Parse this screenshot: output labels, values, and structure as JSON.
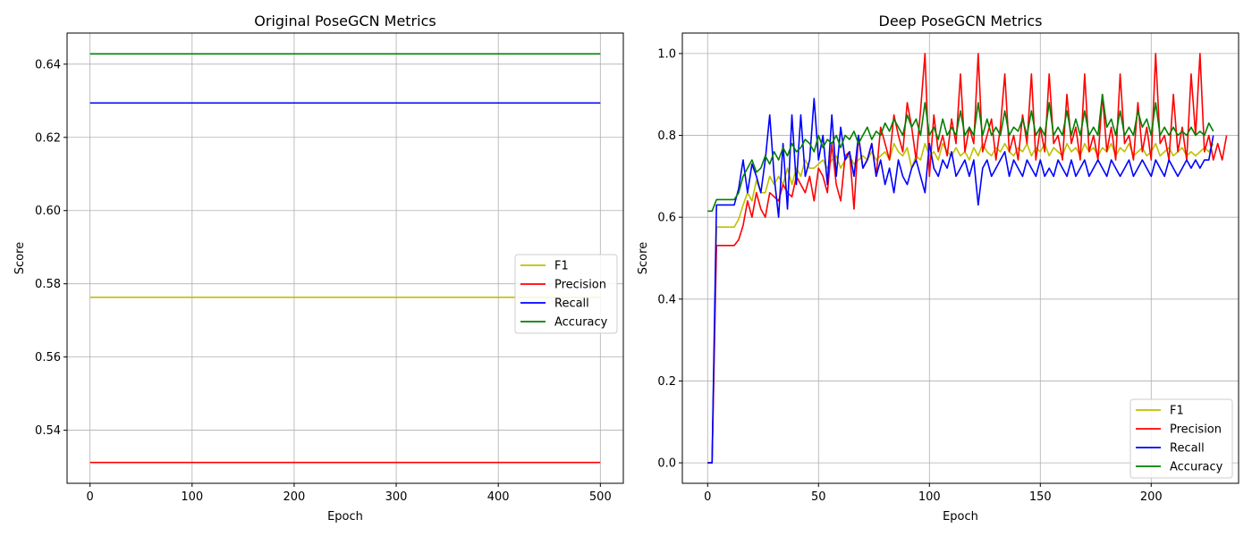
{
  "chart_data": [
    {
      "type": "line",
      "title": "Original PoseGCN Metrics",
      "xlabel": "Epoch",
      "ylabel": "Score",
      "xlim": [
        -22.5,
        522.5
      ],
      "ylim": [
        0.5255,
        0.6485
      ],
      "xticks": [
        0,
        100,
        200,
        300,
        400,
        500
      ],
      "yticks": [
        0.54,
        0.56,
        0.58,
        0.6,
        0.62,
        0.64
      ],
      "ytick_labels": [
        "0.54",
        "0.56",
        "0.58",
        "0.60",
        "0.62",
        "0.64"
      ],
      "grid": true,
      "legend_position": "center-right",
      "series": [
        {
          "name": "F1",
          "color": "#bfbf00",
          "x": [
            0,
            500
          ],
          "values": [
            0.5763,
            0.5763
          ]
        },
        {
          "name": "Precision",
          "color": "#ff0000",
          "x": [
            0,
            500
          ],
          "values": [
            0.5312,
            0.5312
          ]
        },
        {
          "name": "Recall",
          "color": "#0000ff",
          "x": [
            0,
            500
          ],
          "values": [
            0.6294,
            0.6294
          ]
        },
        {
          "name": "Accuracy",
          "color": "#008000",
          "x": [
            0,
            500
          ],
          "values": [
            0.6428,
            0.6428
          ]
        }
      ]
    },
    {
      "type": "line",
      "title": "Deep PoseGCN Metrics",
      "xlabel": "Epoch",
      "ylabel": "Score",
      "xlim": [
        -11.4,
        239.4
      ],
      "ylim": [
        -0.05,
        1.05
      ],
      "xticks": [
        0,
        50,
        100,
        150,
        200
      ],
      "yticks": [
        0.0,
        0.2,
        0.4,
        0.6,
        0.8,
        1.0
      ],
      "ytick_labels": [
        "0.0",
        "0.2",
        "0.4",
        "0.6",
        "0.8",
        "1.0"
      ],
      "grid": true,
      "legend_position": "lower-right",
      "series": [
        {
          "name": "F1",
          "color": "#bfbf00",
          "x_start": 0,
          "x_step": 2,
          "values": [
            0.0,
            0.0,
            0.576,
            0.576,
            0.576,
            0.576,
            0.576,
            0.595,
            0.63,
            0.66,
            0.64,
            0.69,
            0.66,
            0.66,
            0.7,
            0.68,
            0.7,
            0.68,
            0.72,
            0.68,
            0.72,
            0.7,
            0.74,
            0.72,
            0.72,
            0.73,
            0.74,
            0.72,
            0.74,
            0.75,
            0.72,
            0.74,
            0.75,
            0.73,
            0.74,
            0.75,
            0.74,
            0.76,
            0.74,
            0.75,
            0.76,
            0.74,
            0.78,
            0.76,
            0.75,
            0.77,
            0.72,
            0.75,
            0.74,
            0.78,
            0.75,
            0.76,
            0.74,
            0.78,
            0.76,
            0.75,
            0.77,
            0.75,
            0.76,
            0.74,
            0.77,
            0.75,
            0.78,
            0.76,
            0.75,
            0.77,
            0.76,
            0.78,
            0.76,
            0.75,
            0.77,
            0.76,
            0.78,
            0.75,
            0.77,
            0.76,
            0.78,
            0.75,
            0.77,
            0.76,
            0.75,
            0.78,
            0.76,
            0.77,
            0.75,
            0.78,
            0.76,
            0.77,
            0.75,
            0.77,
            0.76,
            0.78,
            0.75,
            0.77,
            0.76,
            0.78,
            0.75,
            0.76,
            0.77,
            0.75,
            0.76,
            0.78,
            0.75,
            0.76,
            0.77,
            0.75,
            0.76,
            0.77,
            0.75,
            0.76,
            0.75,
            0.76,
            0.77,
            0.76,
            0.78
          ]
        },
        {
          "name": "Precision",
          "color": "#ff0000",
          "x_start": 0,
          "x_step": 2,
          "values": [
            0.0,
            0.0,
            0.531,
            0.531,
            0.531,
            0.531,
            0.531,
            0.545,
            0.58,
            0.64,
            0.6,
            0.66,
            0.62,
            0.6,
            0.66,
            0.65,
            0.64,
            0.68,
            0.66,
            0.65,
            0.7,
            0.68,
            0.66,
            0.7,
            0.64,
            0.72,
            0.7,
            0.66,
            0.78,
            0.68,
            0.64,
            0.75,
            0.76,
            0.62,
            0.8,
            0.72,
            0.74,
            0.78,
            0.7,
            0.82,
            0.78,
            0.74,
            0.85,
            0.8,
            0.76,
            0.88,
            0.82,
            0.74,
            0.86,
            1.0,
            0.7,
            0.85,
            0.76,
            0.8,
            0.75,
            0.84,
            0.78,
            0.95,
            0.76,
            0.82,
            0.78,
            1.0,
            0.76,
            0.8,
            0.84,
            0.74,
            0.82,
            0.95,
            0.76,
            0.8,
            0.74,
            0.85,
            0.78,
            0.95,
            0.74,
            0.82,
            0.76,
            0.95,
            0.78,
            0.8,
            0.74,
            0.9,
            0.78,
            0.82,
            0.74,
            0.95,
            0.76,
            0.8,
            0.74,
            0.9,
            0.76,
            0.82,
            0.74,
            0.95,
            0.78,
            0.8,
            0.74,
            0.88,
            0.76,
            0.82,
            0.74,
            1.0,
            0.78,
            0.8,
            0.74,
            0.9,
            0.76,
            0.82,
            0.74,
            0.95,
            0.8,
            1.0,
            0.76,
            0.8,
            0.74,
            0.78,
            0.74,
            0.8
          ]
        },
        {
          "name": "Recall",
          "color": "#0000ff",
          "x_start": 0,
          "x_step": 2,
          "values": [
            0.0,
            0.0,
            0.63,
            0.63,
            0.63,
            0.63,
            0.63,
            0.67,
            0.74,
            0.66,
            0.73,
            0.7,
            0.66,
            0.74,
            0.85,
            0.7,
            0.6,
            0.78,
            0.62,
            0.85,
            0.68,
            0.85,
            0.7,
            0.74,
            0.89,
            0.74,
            0.8,
            0.68,
            0.85,
            0.7,
            0.82,
            0.74,
            0.76,
            0.7,
            0.8,
            0.72,
            0.74,
            0.78,
            0.7,
            0.74,
            0.68,
            0.72,
            0.66,
            0.74,
            0.7,
            0.68,
            0.72,
            0.74,
            0.7,
            0.66,
            0.78,
            0.72,
            0.7,
            0.74,
            0.72,
            0.76,
            0.7,
            0.72,
            0.74,
            0.7,
            0.74,
            0.63,
            0.72,
            0.74,
            0.7,
            0.72,
            0.74,
            0.76,
            0.7,
            0.74,
            0.72,
            0.7,
            0.74,
            0.72,
            0.7,
            0.74,
            0.7,
            0.72,
            0.7,
            0.74,
            0.72,
            0.7,
            0.74,
            0.7,
            0.72,
            0.74,
            0.7,
            0.72,
            0.74,
            0.72,
            0.7,
            0.74,
            0.72,
            0.7,
            0.72,
            0.74,
            0.7,
            0.72,
            0.74,
            0.72,
            0.7,
            0.74,
            0.72,
            0.7,
            0.74,
            0.72,
            0.7,
            0.72,
            0.74,
            0.72,
            0.74,
            0.72,
            0.74,
            0.74,
            0.8
          ]
        },
        {
          "name": "Accuracy",
          "color": "#008000",
          "x_start": 0,
          "x_step": 2,
          "values": [
            0.615,
            0.615,
            0.643,
            0.643,
            0.643,
            0.643,
            0.643,
            0.66,
            0.7,
            0.72,
            0.74,
            0.71,
            0.72,
            0.75,
            0.73,
            0.76,
            0.74,
            0.77,
            0.75,
            0.78,
            0.76,
            0.77,
            0.79,
            0.78,
            0.76,
            0.8,
            0.77,
            0.79,
            0.78,
            0.8,
            0.77,
            0.8,
            0.79,
            0.81,
            0.78,
            0.8,
            0.82,
            0.79,
            0.81,
            0.8,
            0.83,
            0.81,
            0.84,
            0.82,
            0.8,
            0.85,
            0.82,
            0.84,
            0.8,
            0.88,
            0.8,
            0.82,
            0.79,
            0.84,
            0.8,
            0.82,
            0.8,
            0.86,
            0.8,
            0.82,
            0.8,
            0.88,
            0.8,
            0.84,
            0.8,
            0.82,
            0.8,
            0.86,
            0.8,
            0.82,
            0.81,
            0.84,
            0.8,
            0.86,
            0.8,
            0.82,
            0.8,
            0.88,
            0.8,
            0.82,
            0.8,
            0.86,
            0.8,
            0.84,
            0.8,
            0.86,
            0.8,
            0.82,
            0.8,
            0.9,
            0.82,
            0.84,
            0.8,
            0.86,
            0.8,
            0.82,
            0.8,
            0.86,
            0.82,
            0.84,
            0.8,
            0.88,
            0.8,
            0.82,
            0.8,
            0.82,
            0.8,
            0.81,
            0.8,
            0.82,
            0.8,
            0.81,
            0.8,
            0.83,
            0.81
          ]
        }
      ]
    }
  ]
}
